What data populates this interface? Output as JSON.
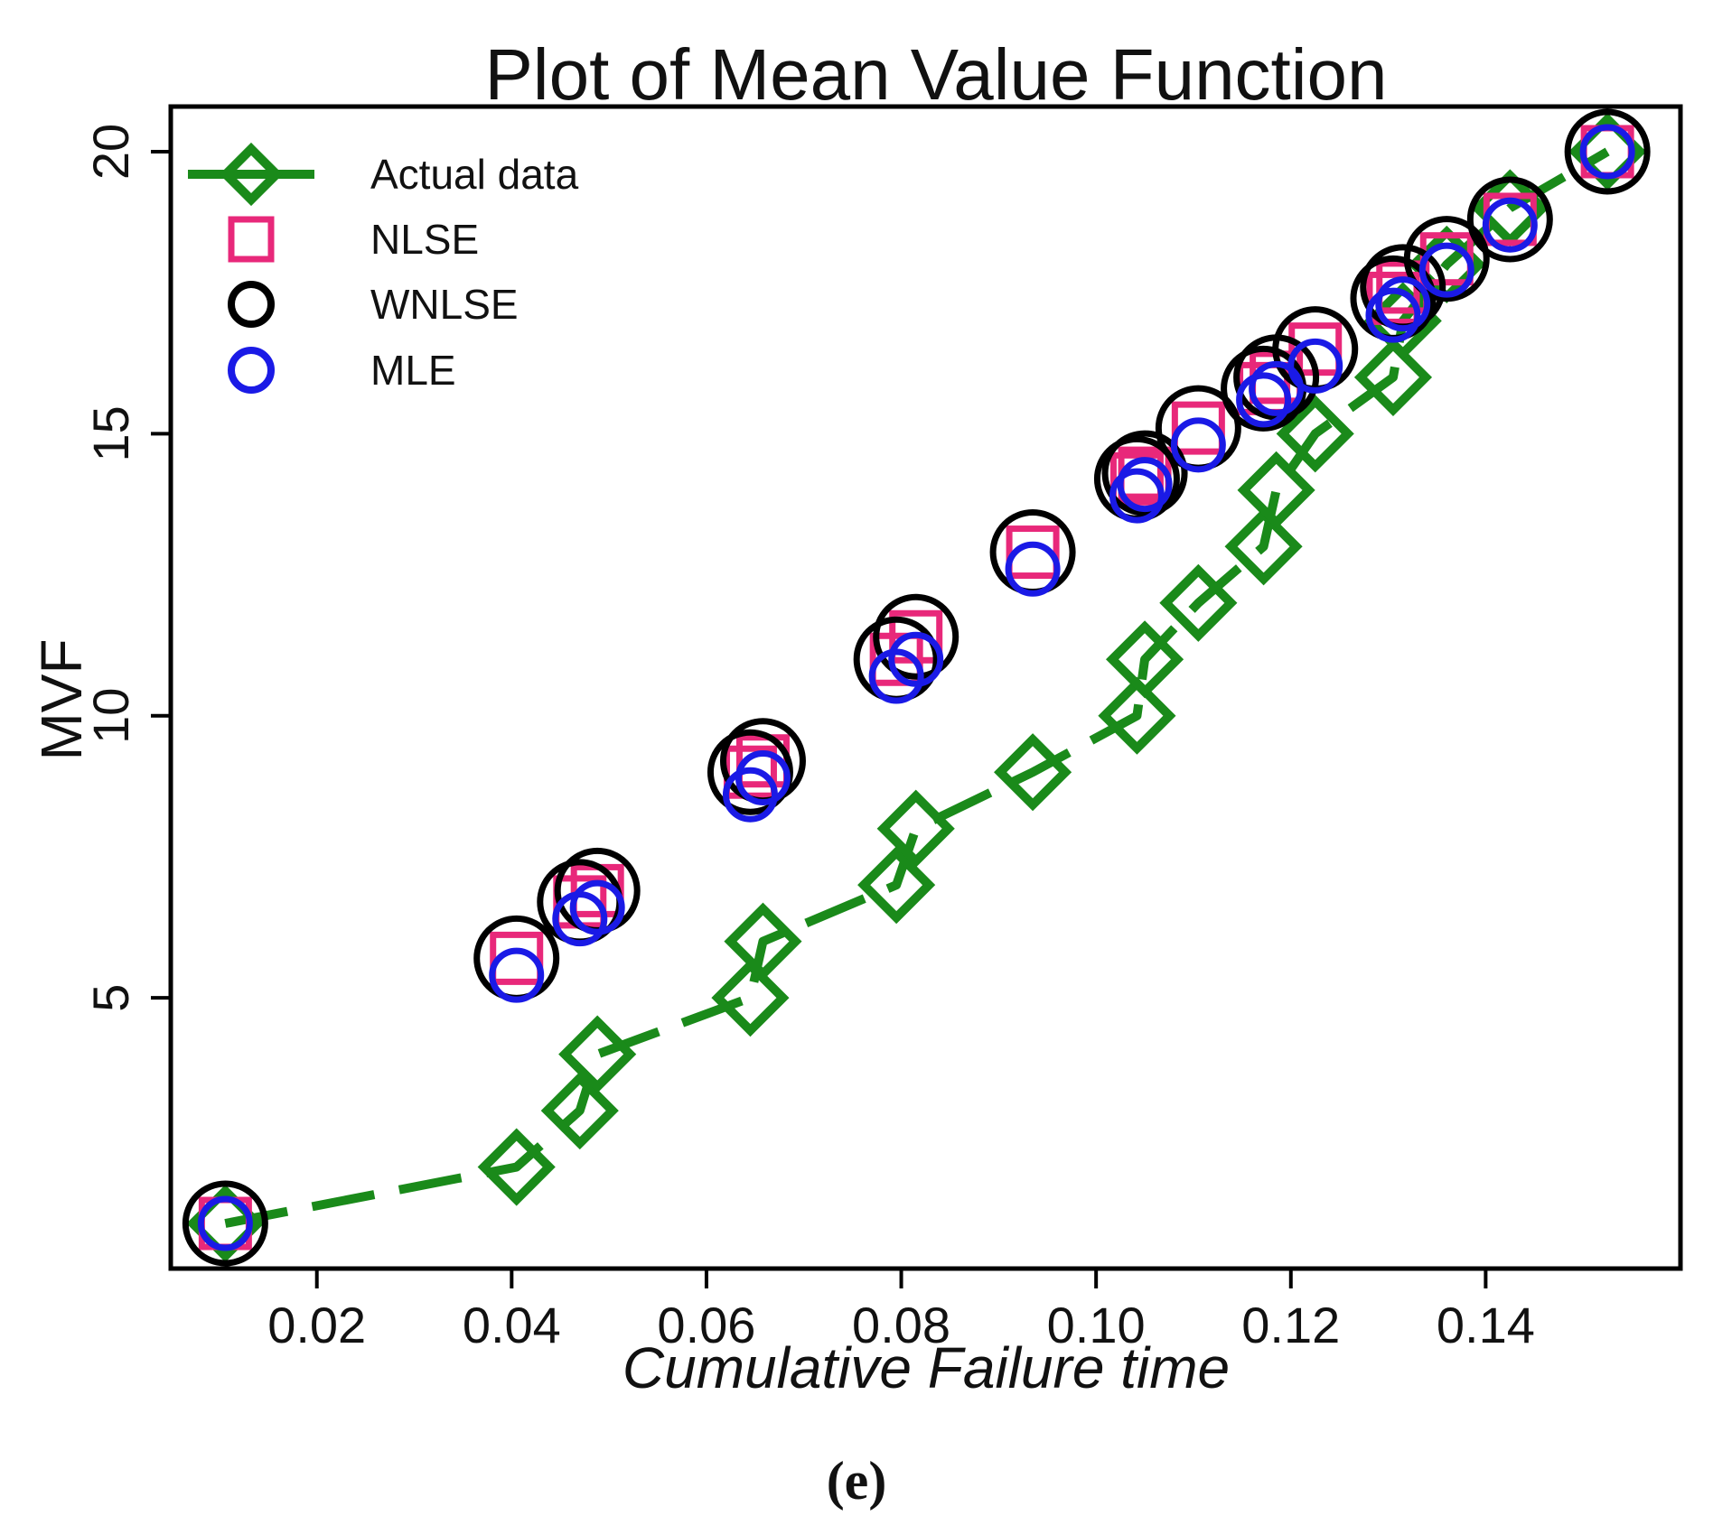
{
  "chart_data": {
    "type": "line",
    "title": "Plot of Mean Value Function",
    "xlabel": "Cumulative Failure time",
    "ylabel": "MVF",
    "caption": "(e)",
    "xlim": [
      0.005,
      0.16
    ],
    "ylim": [
      0.2,
      20.8
    ],
    "xticks": [
      0.02,
      0.04,
      0.06,
      0.08,
      0.1,
      0.12,
      0.14
    ],
    "xtick_labels": [
      "0.02",
      "0.04",
      "0.06",
      "0.08",
      "0.10",
      "0.12",
      "0.14"
    ],
    "yticks": [
      5,
      10,
      15,
      20
    ],
    "ytick_labels": [
      "5",
      "10",
      "15",
      "20"
    ],
    "legend_position": "top-left",
    "series": [
      {
        "name": "Actual data",
        "style": "line-diamond-dashed",
        "color": "#1a8a1a",
        "points": [
          [
            0.0106,
            1
          ],
          [
            0.0405,
            2
          ],
          [
            0.047,
            3
          ],
          [
            0.0488,
            4
          ],
          [
            0.0645,
            5
          ],
          [
            0.0658,
            6
          ],
          [
            0.0795,
            7
          ],
          [
            0.0815,
            8
          ],
          [
            0.0935,
            9
          ],
          [
            0.1042,
            10
          ],
          [
            0.105,
            11
          ],
          [
            0.1105,
            12
          ],
          [
            0.1172,
            13
          ],
          [
            0.1185,
            14
          ],
          [
            0.1225,
            15
          ],
          [
            0.1305,
            16
          ],
          [
            0.1315,
            17
          ],
          [
            0.136,
            18
          ],
          [
            0.1425,
            19
          ],
          [
            0.1525,
            20
          ]
        ]
      },
      {
        "name": "NLSE",
        "style": "square",
        "color": "#e8287a",
        "points": [
          [
            0.0106,
            1
          ],
          [
            0.0405,
            5.7
          ],
          [
            0.047,
            6.7
          ],
          [
            0.0488,
            6.9
          ],
          [
            0.0645,
            9
          ],
          [
            0.0658,
            9.2
          ],
          [
            0.0795,
            11
          ],
          [
            0.0815,
            11.4
          ],
          [
            0.0935,
            12.9
          ],
          [
            0.1042,
            14.2
          ],
          [
            0.105,
            14.3
          ],
          [
            0.1105,
            15.1
          ],
          [
            0.1172,
            15.8
          ],
          [
            0.1185,
            16
          ],
          [
            0.1225,
            16.5
          ],
          [
            0.1305,
            17.4
          ],
          [
            0.1315,
            17.6
          ],
          [
            0.136,
            18.1
          ],
          [
            0.1425,
            18.8
          ],
          [
            0.1525,
            20
          ]
        ]
      },
      {
        "name": "WNLSE",
        "style": "circle-large",
        "color": "#000000",
        "points": [
          [
            0.0106,
            1
          ],
          [
            0.0405,
            5.7
          ],
          [
            0.047,
            6.7
          ],
          [
            0.0488,
            6.9
          ],
          [
            0.0645,
            9
          ],
          [
            0.0658,
            9.2
          ],
          [
            0.0795,
            11
          ],
          [
            0.0815,
            11.4
          ],
          [
            0.0935,
            12.9
          ],
          [
            0.1042,
            14.2
          ],
          [
            0.105,
            14.3
          ],
          [
            0.1105,
            15.1
          ],
          [
            0.1172,
            15.8
          ],
          [
            0.1185,
            16
          ],
          [
            0.1225,
            16.5
          ],
          [
            0.1305,
            17.4
          ],
          [
            0.1315,
            17.6
          ],
          [
            0.136,
            18.1
          ],
          [
            0.1425,
            18.8
          ],
          [
            0.1525,
            20
          ]
        ]
      },
      {
        "name": "MLE",
        "style": "circle",
        "color": "#1a1ae6",
        "points": [
          [
            0.0106,
            1
          ],
          [
            0.0405,
            5.4
          ],
          [
            0.047,
            6.4
          ],
          [
            0.0488,
            6.6
          ],
          [
            0.0645,
            8.6
          ],
          [
            0.0658,
            8.9
          ],
          [
            0.0795,
            10.7
          ],
          [
            0.0815,
            11
          ],
          [
            0.0935,
            12.6
          ],
          [
            0.1042,
            13.9
          ],
          [
            0.105,
            14.1
          ],
          [
            0.1105,
            14.8
          ],
          [
            0.1172,
            15.6
          ],
          [
            0.1185,
            15.8
          ],
          [
            0.1225,
            16.2
          ],
          [
            0.1305,
            17.1
          ],
          [
            0.1315,
            17.3
          ],
          [
            0.136,
            17.9
          ],
          [
            0.1425,
            18.7
          ],
          [
            0.1525,
            20
          ]
        ]
      }
    ]
  }
}
